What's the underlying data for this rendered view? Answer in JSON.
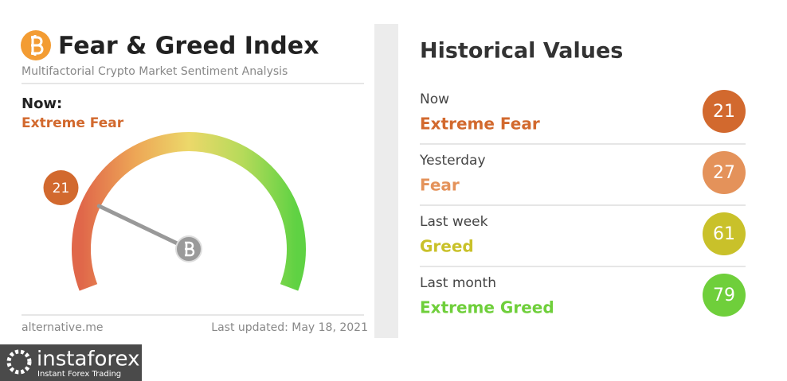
{
  "header": {
    "title": "Fear & Greed Index",
    "subtitle": "Multifactorial Crypto Market Sentiment Analysis"
  },
  "now": {
    "label": "Now:",
    "classification": "Extreme Fear"
  },
  "gauge": {
    "value": 21,
    "range": [
      0,
      100
    ],
    "color": "#d2692e"
  },
  "footer": {
    "source": "alternative.me",
    "updated": "Last updated: May 18, 2021"
  },
  "historical": {
    "title": "Historical Values",
    "items": [
      {
        "label": "Now",
        "classification": "Extreme Fear",
        "value": 21,
        "color": "#d2692e"
      },
      {
        "label": "Yesterday",
        "classification": "Fear",
        "value": 27,
        "color": "#e4925a"
      },
      {
        "label": "Last week",
        "classification": "Greed",
        "value": 61,
        "color": "#c9c12a"
      },
      {
        "label": "Last month",
        "classification": "Extreme Greed",
        "value": 79,
        "color": "#6fcf3b"
      }
    ]
  },
  "watermark": {
    "brand": "instaforex",
    "tagline": "Instant Forex Trading"
  }
}
